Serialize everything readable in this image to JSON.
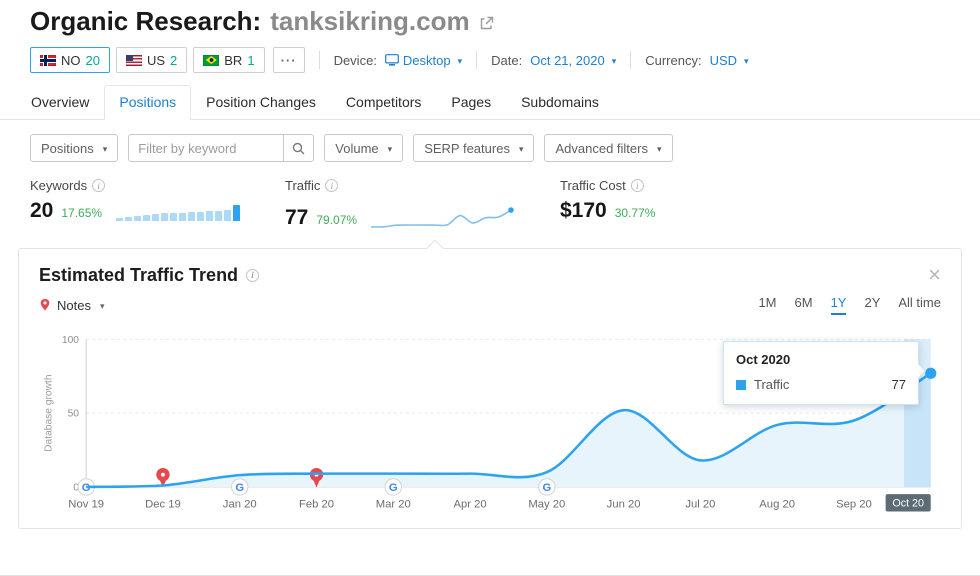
{
  "colors": {
    "accent_blue": "#2da3ef",
    "link_blue": "#1f7fd1",
    "green": "#3faa58",
    "teal": "#00a88f",
    "note_red": "#e5484d",
    "chip_bg": "#5d6b74"
  },
  "header": {
    "title_prefix": "Organic Research:",
    "domain": "tanksikring.com"
  },
  "toolbar": {
    "countries": [
      {
        "code": "NO",
        "count": "20",
        "selected": true
      },
      {
        "code": "US",
        "count": "2",
        "selected": false
      },
      {
        "code": "BR",
        "count": "1",
        "selected": false
      }
    ],
    "more_label": "···",
    "device_label": "Device:",
    "device_value": "Desktop",
    "date_label": "Date:",
    "date_value": "Oct 21, 2020",
    "currency_label": "Currency:",
    "currency_value": "USD"
  },
  "tabs": [
    {
      "label": "Overview",
      "active": false
    },
    {
      "label": "Positions",
      "active": true
    },
    {
      "label": "Position Changes",
      "active": false
    },
    {
      "label": "Competitors",
      "active": false
    },
    {
      "label": "Pages",
      "active": false
    },
    {
      "label": "Subdomains",
      "active": false
    }
  ],
  "filters": {
    "positions_label": "Positions",
    "keyword_placeholder": "Filter by keyword",
    "keyword_value": "",
    "volume_label": "Volume",
    "serp_label": "SERP features",
    "advanced_label": "Advanced filters"
  },
  "metrics": {
    "keywords": {
      "label": "Keywords",
      "value": "20",
      "change": "17.65%",
      "spark": [
        18,
        22,
        30,
        36,
        42,
        48,
        52,
        52,
        58,
        58,
        62,
        62,
        68,
        100
      ]
    },
    "traffic": {
      "label": "Traffic",
      "value": "77",
      "change": "79.07%",
      "spark": [
        0,
        1,
        8,
        9,
        9,
        9,
        10,
        52,
        18,
        42,
        45,
        77
      ]
    },
    "traffic_cost": {
      "label": "Traffic Cost",
      "value": "$170",
      "change": "30.77%"
    }
  },
  "trend_card": {
    "title": "Estimated Traffic Trend",
    "notes_label": "Notes",
    "ranges": [
      {
        "label": "1M"
      },
      {
        "label": "6M"
      },
      {
        "label": "1Y"
      },
      {
        "label": "2Y"
      },
      {
        "label": "All time"
      }
    ],
    "active_range": "1Y",
    "tooltip": {
      "title": "Oct 2020",
      "series": "Traffic",
      "value": "77"
    }
  },
  "chart_data": {
    "type": "area",
    "x": [
      "Nov 19",
      "Dec 19",
      "Jan 20",
      "Feb 20",
      "Mar 20",
      "Apr 20",
      "May 20",
      "Jun 20",
      "Jul 20",
      "Aug 20",
      "Sep 20",
      "Oct 20"
    ],
    "series": [
      {
        "name": "Traffic",
        "values": [
          0,
          1,
          8,
          9,
          9,
          9,
          10,
          52,
          18,
          42,
          45,
          77
        ]
      }
    ],
    "title": "Estimated Traffic Trend",
    "xlabel": "",
    "ylabel": "Database growth",
    "ylim": [
      0,
      100
    ],
    "yticks": [
      0,
      50,
      100
    ],
    "grid": true,
    "highlight_x": "Oct 20",
    "note_markers": [
      {
        "x": "Nov 19",
        "type": "google"
      },
      {
        "x": "Dec 19",
        "type": "note"
      },
      {
        "x": "Jan 20",
        "type": "google"
      },
      {
        "x": "Feb 20",
        "type": "note"
      },
      {
        "x": "Mar 20",
        "type": "google"
      },
      {
        "x": "May 20",
        "type": "google"
      }
    ]
  }
}
